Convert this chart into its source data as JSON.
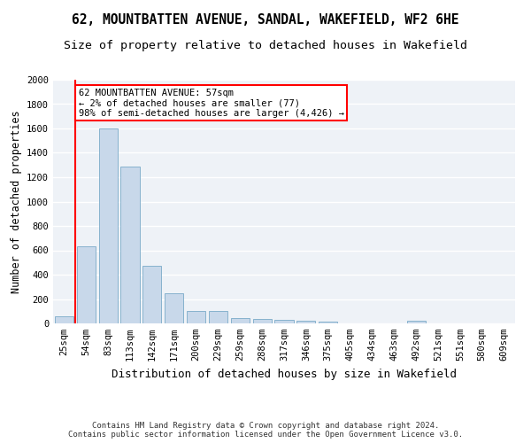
{
  "title": "62, MOUNTBATTEN AVENUE, SANDAL, WAKEFIELD, WF2 6HE",
  "subtitle": "Size of property relative to detached houses in Wakefield",
  "xlabel": "Distribution of detached houses by size in Wakefield",
  "ylabel": "Number of detached properties",
  "bar_color": "#c8d8ea",
  "bar_edge_color": "#7aaac8",
  "categories": [
    "25sqm",
    "54sqm",
    "83sqm",
    "113sqm",
    "142sqm",
    "171sqm",
    "200sqm",
    "229sqm",
    "259sqm",
    "288sqm",
    "317sqm",
    "346sqm",
    "375sqm",
    "405sqm",
    "434sqm",
    "463sqm",
    "492sqm",
    "521sqm",
    "551sqm",
    "580sqm",
    "609sqm"
  ],
  "values": [
    55,
    630,
    1600,
    1290,
    475,
    247,
    100,
    100,
    47,
    35,
    28,
    20,
    15,
    0,
    0,
    0,
    20,
    0,
    0,
    0,
    0
  ],
  "property_line_x": 0.5,
  "annotation_line1": "62 MOUNTBATTEN AVENUE: 57sqm",
  "annotation_line2": "← 2% of detached houses are smaller (77)",
  "annotation_line3": "98% of semi-detached houses are larger (4,426) →",
  "annotation_box_color": "white",
  "annotation_box_edge_color": "red",
  "vline_color": "red",
  "background_color": "#eef2f7",
  "grid_color": "white",
  "ylim": [
    0,
    2000
  ],
  "yticks": [
    0,
    200,
    400,
    600,
    800,
    1000,
    1200,
    1400,
    1600,
    1800,
    2000
  ],
  "footnote": "Contains HM Land Registry data © Crown copyright and database right 2024.\nContains public sector information licensed under the Open Government Licence v3.0.",
  "title_fontsize": 10.5,
  "subtitle_fontsize": 9.5,
  "xlabel_fontsize": 9,
  "ylabel_fontsize": 8.5,
  "tick_fontsize": 7.5,
  "annotation_fontsize": 7.5,
  "footnote_fontsize": 6.5
}
